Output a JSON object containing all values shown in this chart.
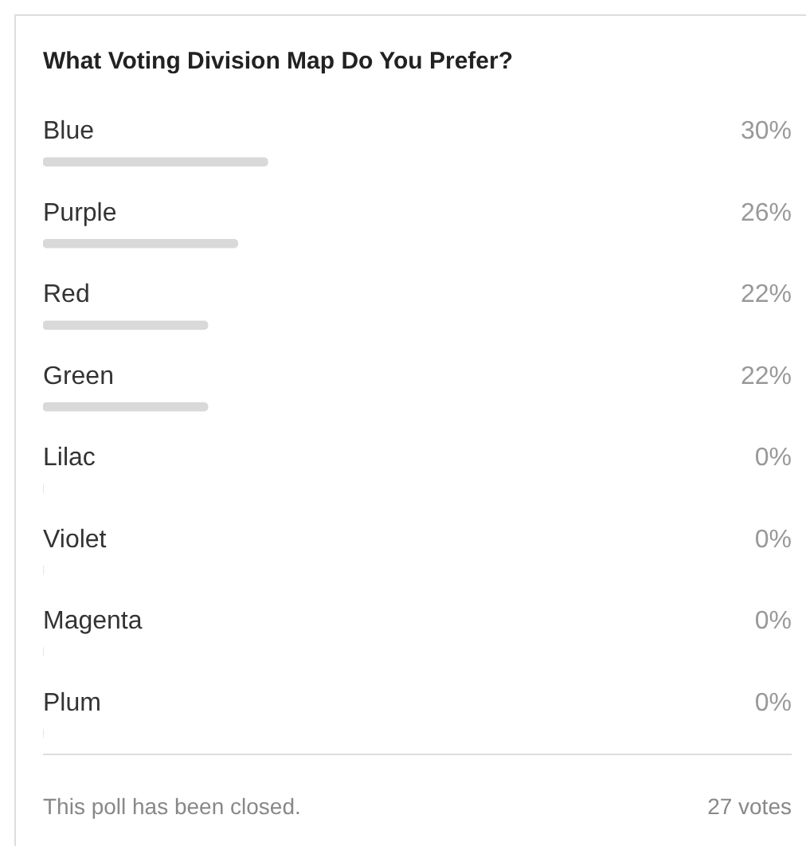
{
  "chart_data": {
    "type": "bar",
    "orientation": "horizontal",
    "title": "What Voting Division Map Do You Prefer?",
    "categories": [
      "Blue",
      "Purple",
      "Red",
      "Green",
      "Lilac",
      "Violet",
      "Magenta",
      "Plum"
    ],
    "values": [
      30,
      26,
      22,
      22,
      0,
      0,
      0,
      0
    ],
    "value_labels": [
      "30%",
      "26%",
      "22%",
      "22%",
      "0%",
      "0%",
      "0%",
      "0%"
    ],
    "color": "#d9d9d9",
    "xlim": [
      0,
      100
    ],
    "tick_labels": false,
    "annotations": [
      "This poll has been closed.",
      "27 votes"
    ]
  }
}
